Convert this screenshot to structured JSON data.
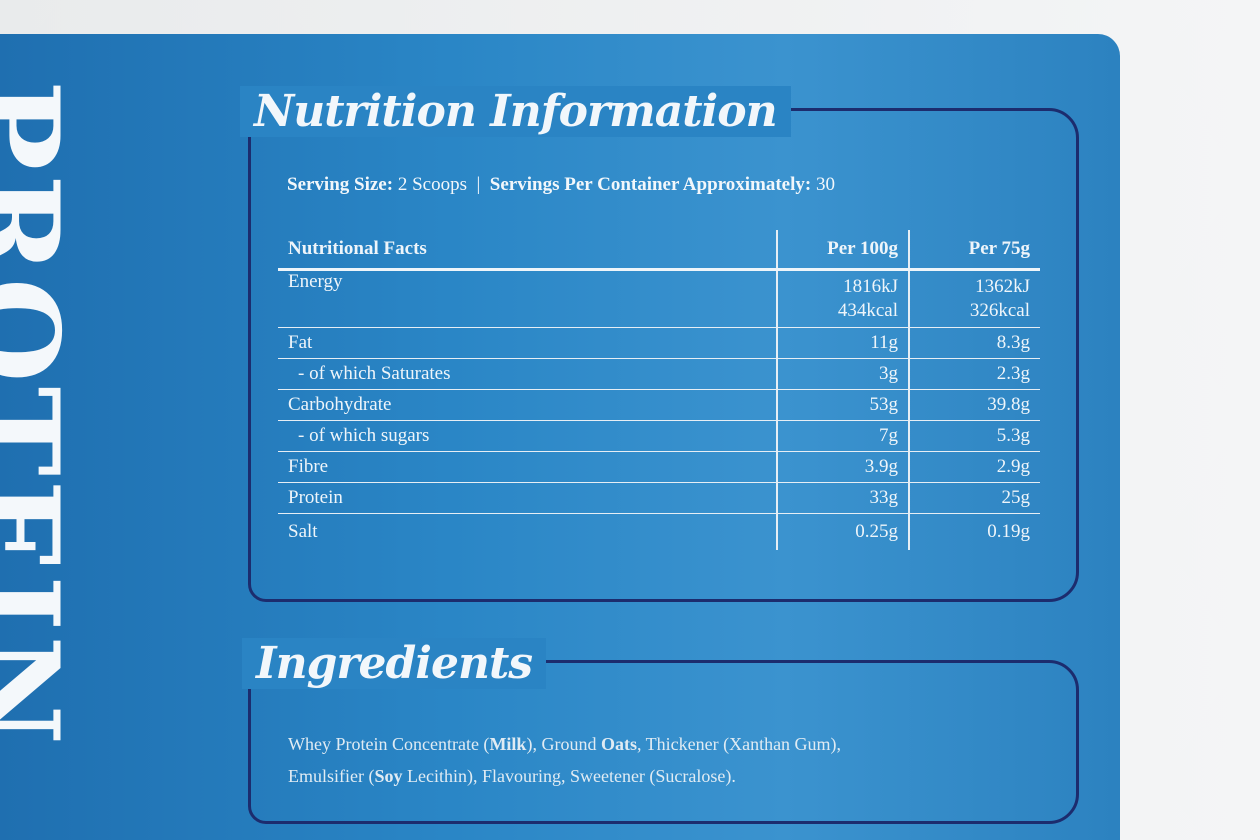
{
  "side_text": "PROTEIN",
  "nutrition": {
    "title": "Nutrition Information",
    "serving_size_label": "Serving Size:",
    "serving_size": "2 Scoops",
    "servings_label": "Servings Per Container Approximately:",
    "servings": "30",
    "table": {
      "header": [
        "Nutritional Facts",
        "Per 100g",
        "Per 75g"
      ],
      "rows": [
        [
          "Energy",
          [
            "1816kJ",
            "434kcal"
          ],
          [
            "1362kJ",
            "326kcal"
          ]
        ],
        [
          "Fat",
          "11g",
          "8.3g"
        ],
        [
          "- of which Saturates",
          "3g",
          "2.3g"
        ],
        [
          "Carbohydrate",
          "53g",
          "39.8g"
        ],
        [
          "- of which sugars",
          "7g",
          "5.3g"
        ],
        [
          "Fibre",
          "3.9g",
          "2.9g"
        ],
        [
          "Protein",
          "33g",
          "25g"
        ],
        [
          "Salt",
          "0.25g",
          "0.19g"
        ]
      ]
    }
  },
  "ingredients": {
    "title": "Ingredients",
    "lines": [
      [
        "Whey Protein Concentrate (",
        "Milk",
        "), Ground ",
        "Oats",
        ", Thickener (Xanthan Gum),"
      ],
      [
        "Emulsifier (",
        "Soy",
        " Lecithin), Flavouring, Sweetener (Sucralose)."
      ]
    ]
  }
}
